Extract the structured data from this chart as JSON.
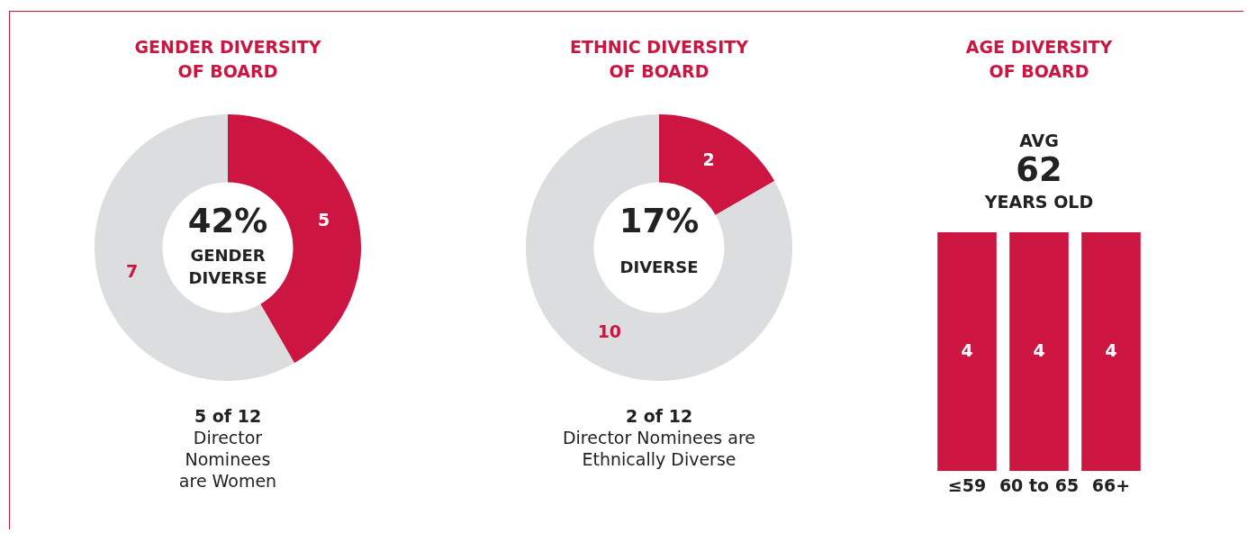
{
  "chart_data": [
    {
      "type": "donut",
      "title": "GENDER DIVERSITY OF BOARD",
      "categories": [
        null,
        null
      ],
      "values": [
        5,
        7
      ],
      "colors": [
        "#cc1540",
        "#dcdddf"
      ],
      "data_labels": true,
      "annotations": [
        "42%",
        "GENDER DIVERSE",
        "5 of 12",
        "Director Nominees are Women"
      ]
    },
    {
      "type": "donut",
      "title": "ETHNIC DIVERSITY OF BOARD",
      "categories": [
        null,
        null
      ],
      "values": [
        2,
        10
      ],
      "colors": [
        "#cc1540",
        "#dcdddf"
      ],
      "data_labels": true,
      "annotations": [
        "17%",
        "DIVERSE",
        "2 of 12",
        "Director Nominees are Ethnically Diverse"
      ]
    },
    {
      "type": "bar",
      "title": "AGE DIVERSITY OF BOARD",
      "categories": [
        "≤59",
        "60 to 65",
        "66+"
      ],
      "values": [
        4,
        4,
        4
      ],
      "color": "#cc1540",
      "data_labels": true,
      "tick_labels": "x",
      "annotations": [
        "AVG",
        "62",
        "YEARS OLD"
      ]
    }
  ]
}
